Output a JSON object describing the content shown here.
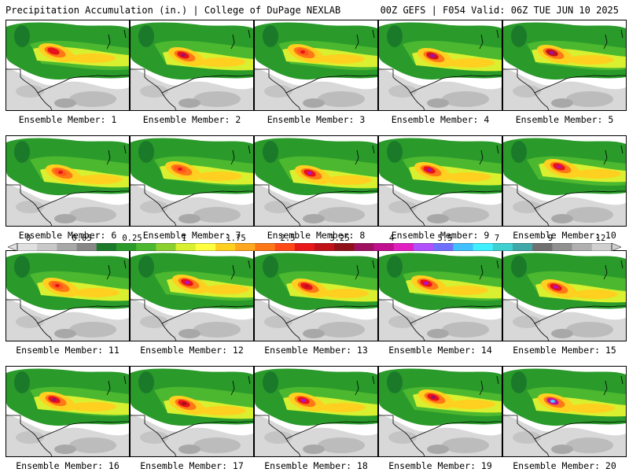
{
  "header": {
    "left_title": "Precipitation Accumulation (in.) | College of DuPage NEXLAB",
    "right_title": "00Z GEFS | F054 Valid: 06Z TUE JUN 10 2025"
  },
  "panels": [
    {
      "label": "Ensemble Member: 1",
      "core": "#e8101a",
      "peak": "#e8101a"
    },
    {
      "label": "Ensemble Member: 2",
      "core": "#e8101a",
      "peak": "#9a1070"
    },
    {
      "label": "Ensemble Member: 3",
      "core": "#ff5a1a",
      "peak": "#e8101a"
    },
    {
      "label": "Ensemble Member: 4",
      "core": "#d4101a",
      "peak": "#9a10c0"
    },
    {
      "label": "Ensemble Member: 5",
      "core": "#c0101a",
      "peak": "#a010a0"
    },
    {
      "label": "Ensemble Member: 6",
      "core": "#ff5a1a",
      "peak": "#e8101a"
    },
    {
      "label": "Ensemble Member: 7",
      "core": "#ff5a1a",
      "peak": "#e8101a"
    },
    {
      "label": "Ensemble Member: 8",
      "core": "#e8101a",
      "peak": "#b010d0"
    },
    {
      "label": "Ensemble Member: 9",
      "core": "#e8101a",
      "peak": "#a010a0"
    },
    {
      "label": "Ensemble Member: 10",
      "core": "#e8101a",
      "peak": "#c010a0"
    },
    {
      "label": "Ensemble Member: 11",
      "core": "#ff5a1a",
      "peak": "#e8101a"
    },
    {
      "label": "Ensemble Member: 12",
      "core": "#e8101a",
      "peak": "#b010d0"
    },
    {
      "label": "Ensemble Member: 13",
      "core": "#e8101a",
      "peak": "#c0101a"
    },
    {
      "label": "Ensemble Member: 14",
      "core": "#e8101a",
      "peak": "#b010d0"
    },
    {
      "label": "Ensemble Member: 15",
      "core": "#e8101a",
      "peak": "#b010d0"
    },
    {
      "label": "Ensemble Member: 16",
      "core": "#e8101a",
      "peak": "#9a1070"
    },
    {
      "label": "Ensemble Member: 17",
      "core": "#e8101a",
      "peak": "#a0101a"
    },
    {
      "label": "Ensemble Member: 18",
      "core": "#e8101a",
      "peak": "#b010d0"
    },
    {
      "label": "Ensemble Member: 19",
      "core": "#e8101a",
      "peak": "#9a1070"
    },
    {
      "label": "Ensemble Member: 20",
      "core": "#c010a0",
      "peak": "#40d0ff"
    }
  ],
  "colorbar": {
    "ticks": [
      {
        "label": "0",
        "value": 0
      },
      {
        "label": "0.05",
        "value": 0.05
      },
      {
        "label": "0.25",
        "value": 0.25
      },
      {
        "label": "1",
        "value": 1
      },
      {
        "label": "1.75",
        "value": 1.75
      },
      {
        "label": "2.5",
        "value": 2.5
      },
      {
        "label": "3.25",
        "value": 3.25
      },
      {
        "label": "4",
        "value": 4
      },
      {
        "label": "5.5",
        "value": 5.5
      },
      {
        "label": "7",
        "value": 7
      },
      {
        "label": "9",
        "value": 9
      },
      {
        "label": "12",
        "value": 12
      }
    ],
    "colors": [
      "#e0e0e0",
      "#c8c8c8",
      "#a8a8a8",
      "#888888",
      "#1a7a2a",
      "#2a9a2a",
      "#4cb830",
      "#8cd030",
      "#d8f030",
      "#ffff40",
      "#ffd020",
      "#ffa820",
      "#ff7818",
      "#ff4a18",
      "#e81818",
      "#c01018",
      "#901018",
      "#a01060",
      "#c01090",
      "#e020c0",
      "#b050ff",
      "#7070ff",
      "#40c0ff",
      "#40f0ff",
      "#40d0d0",
      "#40a8a8",
      "#707070",
      "#909090",
      "#b0b0b0",
      "#d0d0d0"
    ]
  }
}
